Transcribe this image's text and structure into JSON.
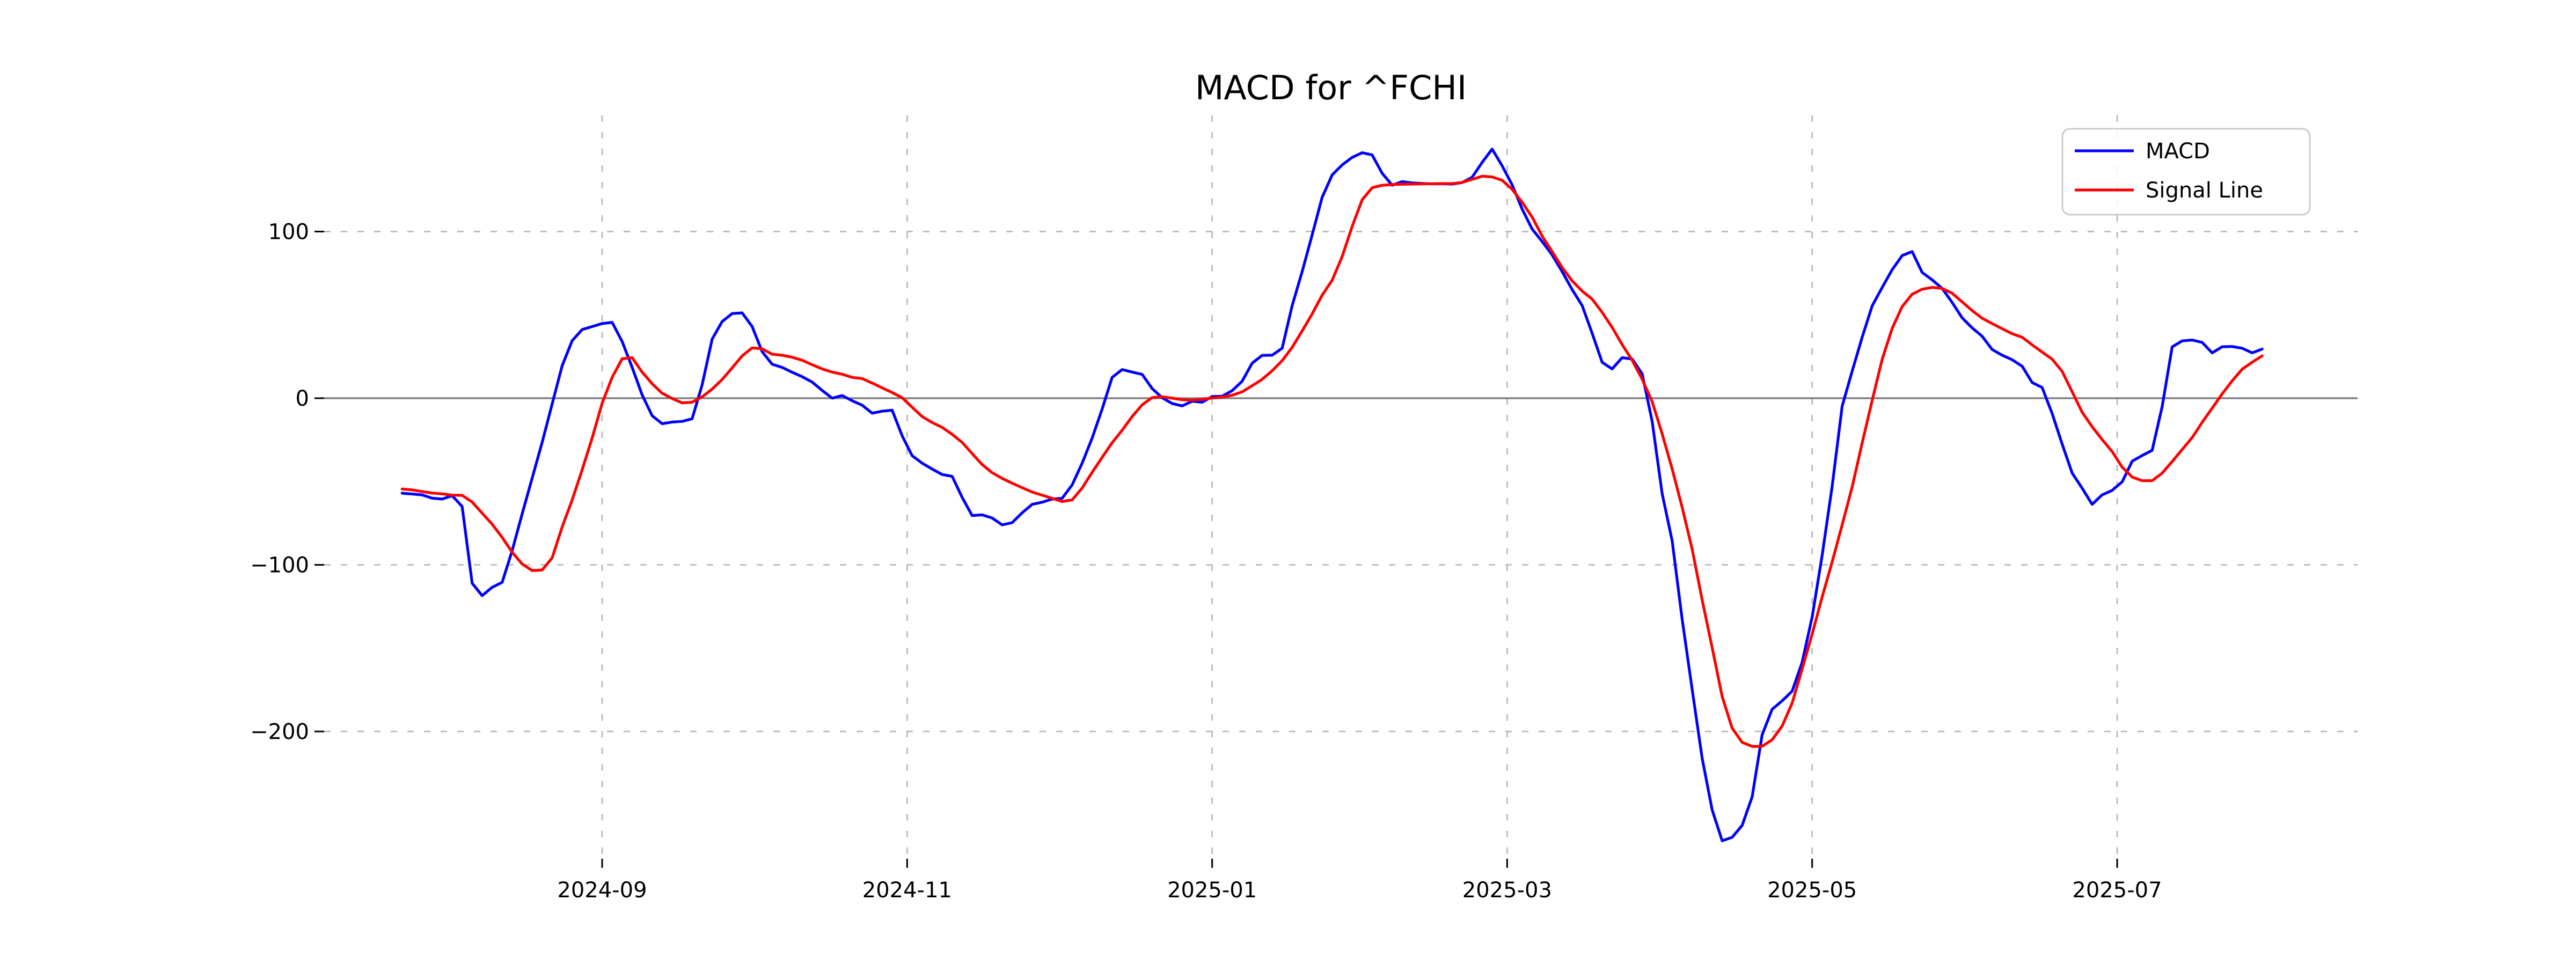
{
  "page": {
    "background": "#ffffff"
  },
  "chart_data": {
    "type": "line",
    "title": "MACD for ^FCHI",
    "xlabel": "",
    "ylabel": "",
    "grid": "dashed",
    "zero_line": true,
    "ylim": [
      -276,
      170
    ],
    "y_ticks": [
      {
        "label": "100",
        "value": 100
      },
      {
        "label": "0",
        "value": 0
      },
      {
        "label": "−100",
        "value": -100
      },
      {
        "label": "−200",
        "value": -200
      }
    ],
    "x_ticks": [
      {
        "label": "2024-09",
        "date": "2024-09-01"
      },
      {
        "label": "2024-11",
        "date": "2024-11-01"
      },
      {
        "label": "2025-01",
        "date": "2025-01-01"
      },
      {
        "label": "2025-03",
        "date": "2025-03-01"
      },
      {
        "label": "2025-05",
        "date": "2025-05-01"
      },
      {
        "label": "2025-07",
        "date": "2025-07-01"
      }
    ],
    "legend": {
      "position": "upper right",
      "entries": [
        {
          "label": "MACD",
          "color": "#0000ff"
        },
        {
          "label": "Signal Line",
          "color": "#ff0000"
        }
      ]
    },
    "colors": {
      "grid": "#b3b3b3",
      "zero_line": "#808080",
      "legend_border": "#cccccc"
    },
    "series": [
      {
        "name": "MACD",
        "color": "#0000ff",
        "start_date": "2024-07-23",
        "step_days": 2,
        "values": [
          -57,
          -57.5,
          -58,
          -60,
          -60.5,
          -58.5,
          -65,
          -111,
          -118.5,
          -113.5,
          -110.5,
          -91.5,
          -69.5,
          -48,
          -26.5,
          -3.5,
          19.5,
          34.5,
          41.2,
          43,
          44.8,
          45.5,
          34,
          18.5,
          2,
          -10.5,
          -15.3,
          -14.3,
          -13.9,
          -12.3,
          8,
          35.5,
          46,
          50.8,
          51.2,
          43,
          28,
          20.4,
          18.5,
          15.6,
          12.9,
          9.7,
          4.7,
          0,
          1.6,
          -1.5,
          -4.2,
          -9,
          -7.8,
          -7.2,
          -22.5,
          -34.5,
          -39,
          -42.5,
          -45.8,
          -46.9,
          -59.5,
          -70.4,
          -70,
          -71.9,
          -76,
          -74.7,
          -68.8,
          -63.7,
          -62.4,
          -60.5,
          -60.1,
          -52,
          -39,
          -24,
          -6.5,
          12.5,
          17.2,
          15.7,
          14.3,
          5.8,
          0.3,
          -3.2,
          -4.6,
          -1.8,
          -2.4,
          1,
          1.2,
          4.5,
          10.2,
          21,
          25.7,
          25.8,
          30,
          55.5,
          76,
          98,
          120.5,
          134,
          140,
          144.5,
          147.3,
          146,
          135,
          127.8,
          130,
          129.2,
          128.9,
          128.6,
          128.7,
          128.5,
          129.4,
          132.6,
          141.5,
          149.5,
          139.5,
          128,
          113.5,
          101.5,
          94,
          86,
          76,
          65.2,
          55.6,
          39,
          21.5,
          17.6,
          24.3,
          23.5,
          14.7,
          -13.8,
          -57.3,
          -85.5,
          -132.5,
          -174.8,
          -216,
          -247,
          -265.6,
          -263.5,
          -256.4,
          -239.2,
          -202,
          -186.7,
          -181.6,
          -175.8,
          -158.5,
          -131.3,
          -94.3,
          -53,
          -4.8,
          16.2,
          36.5,
          55.4,
          66.4,
          77.1,
          85.6,
          88,
          75.5,
          71,
          65.9,
          57.5,
          48.2,
          42.2,
          37.2,
          29.2,
          25.8,
          23.1,
          19.2,
          9.4,
          6.4,
          -9.2,
          -27.5,
          -44.9,
          -54,
          -63.7,
          -58,
          -55.3,
          -50.2,
          -37.8,
          -34.4,
          -31.3,
          -5,
          30.8,
          34.4,
          34.9,
          33.5,
          27.2,
          30.9,
          31,
          30,
          27.2,
          29.5
        ]
      },
      {
        "name": "Signal Line",
        "color": "#ff0000",
        "start_date": "2024-07-23",
        "step_days": 2,
        "values": [
          -54.5,
          -55,
          -56,
          -56.9,
          -57.4,
          -58.2,
          -58.3,
          -62.3,
          -69,
          -75.6,
          -83.5,
          -92.4,
          -99.5,
          -103.4,
          -103.1,
          -95.8,
          -77.3,
          -61.1,
          -43,
          -23.9,
          -3,
          12.5,
          23.7,
          24.3,
          15.7,
          8.7,
          3,
          -0.2,
          -2.8,
          -2.4,
          0.8,
          5.5,
          11.2,
          18.2,
          25.4,
          30.2,
          29.6,
          26.4,
          25.8,
          24.6,
          22.8,
          20.1,
          17.6,
          15.7,
          14.4,
          12.5,
          11.8,
          9.1,
          6.2,
          3.4,
          0.3,
          -5.4,
          -11,
          -14.6,
          -17.5,
          -21.7,
          -26.5,
          -33.2,
          -39.8,
          -44.7,
          -48.1,
          -51,
          -53.7,
          -56.3,
          -58.2,
          -60.1,
          -62,
          -61,
          -53.9,
          -44.5,
          -35.5,
          -26.7,
          -19.2,
          -11,
          -4,
          0.4,
          0.9,
          0,
          -0.9,
          -1.2,
          -0.6,
          0.1,
          0.7,
          1.8,
          3.8,
          7.5,
          11.3,
          16.5,
          22.5,
          30.5,
          40.4,
          50.6,
          61.8,
          70.8,
          85,
          103,
          119.1,
          126.3,
          127.8,
          128.2,
          128.4,
          128.5,
          128.6,
          128.7,
          128.8,
          128.8,
          129.5,
          131.3,
          133.2,
          132.8,
          130.8,
          125.3,
          117.6,
          108.7,
          97.3,
          88,
          78.5,
          70.4,
          64.3,
          59.5,
          51.5,
          42.5,
          32.2,
          22.8,
          11.4,
          -2,
          -21.4,
          -42.4,
          -65.4,
          -90.6,
          -121,
          -149.6,
          -179,
          -198,
          -206.5,
          -209,
          -208.9,
          -205,
          -196.7,
          -183,
          -162.5,
          -141.5,
          -119.3,
          -98.3,
          -76,
          -53.3,
          -27,
          -1.4,
          23.3,
          41.8,
          55,
          62.4,
          65.4,
          66.5,
          65.9,
          63,
          57.8,
          52.6,
          48,
          44.8,
          41.7,
          38.7,
          36.6,
          32,
          27.7,
          23.4,
          16.1,
          3.9,
          -8.4,
          -17.1,
          -24.8,
          -32,
          -41.4,
          -47.3,
          -49.5,
          -49.5,
          -45,
          -38,
          -30.8,
          -23.6,
          -14.5,
          -6,
          2.6,
          10.4,
          17.4,
          21.6,
          25.4
        ]
      }
    ]
  }
}
